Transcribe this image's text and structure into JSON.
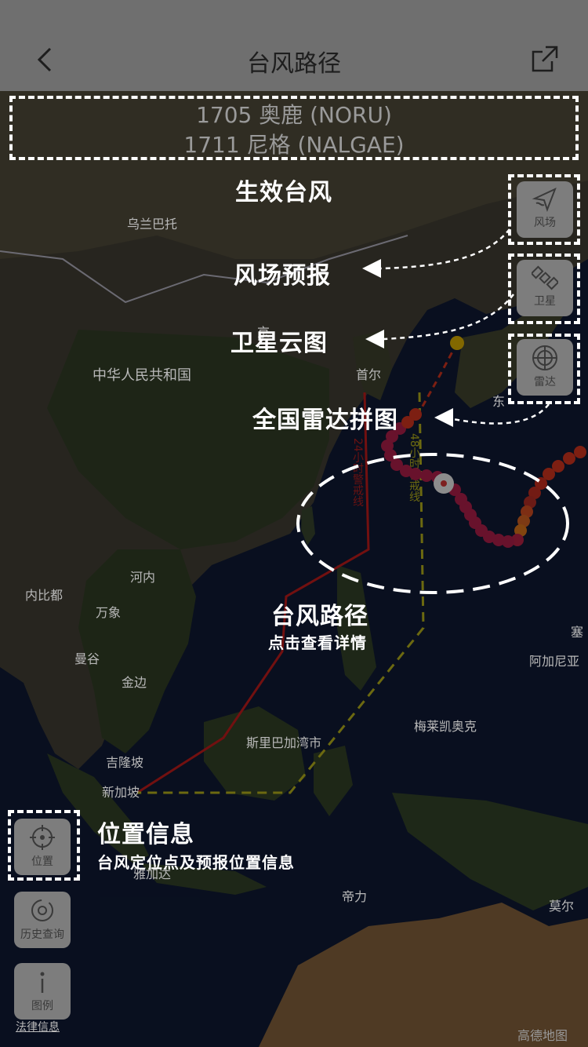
{
  "nav": {
    "title": "台风路径"
  },
  "typhoons": [
    {
      "label": "1705 奥鹿 (NORU)"
    },
    {
      "label": "1711 尼格 (NALGAE)"
    }
  ],
  "side_buttons": {
    "wind": "风场",
    "satellite": "卫星",
    "radar": "雷达"
  },
  "bottom_buttons": {
    "location": "位置",
    "history": "历史查询",
    "legend": "图例"
  },
  "legal_link": "法律信息",
  "watermark": "高德地图",
  "annotations": {
    "active_typhoon": "生效台风",
    "wind_forecast": "风场预报",
    "satellite_cloud": "卫星云图",
    "radar_mosaic": "全国雷达拼图",
    "typhoon_path_title": "台风路径",
    "typhoon_path_sub": "点击查看详情",
    "location_title": "位置信息",
    "location_sub": "台风定位点及预报位置信息"
  },
  "map_labels": {
    "ulaanbaatar": "乌兰巴托",
    "china": "中华人民共和国",
    "seoul": "首尔",
    "hanoi": "河内",
    "naypyidaw": "内比都",
    "vientiane": "万象",
    "bangkok": "曼谷",
    "phnom_penh": "金边",
    "sri_begawan": "斯里巴加湾市",
    "kuala_lumpur": "吉隆坡",
    "singapore": "新加坡",
    "jakarta": "雅加达",
    "dili": "帝力",
    "melekeok": "梅莱凯奥克",
    "hagatna": "阿加尼亚",
    "saipan": "塞",
    "tokyo": "东",
    "port_moresby": "莫尔",
    "beijing_partial": "京"
  },
  "warning_lines": {
    "line_24h": "24小时警戒线",
    "line_48h": "48小时警戒线"
  }
}
